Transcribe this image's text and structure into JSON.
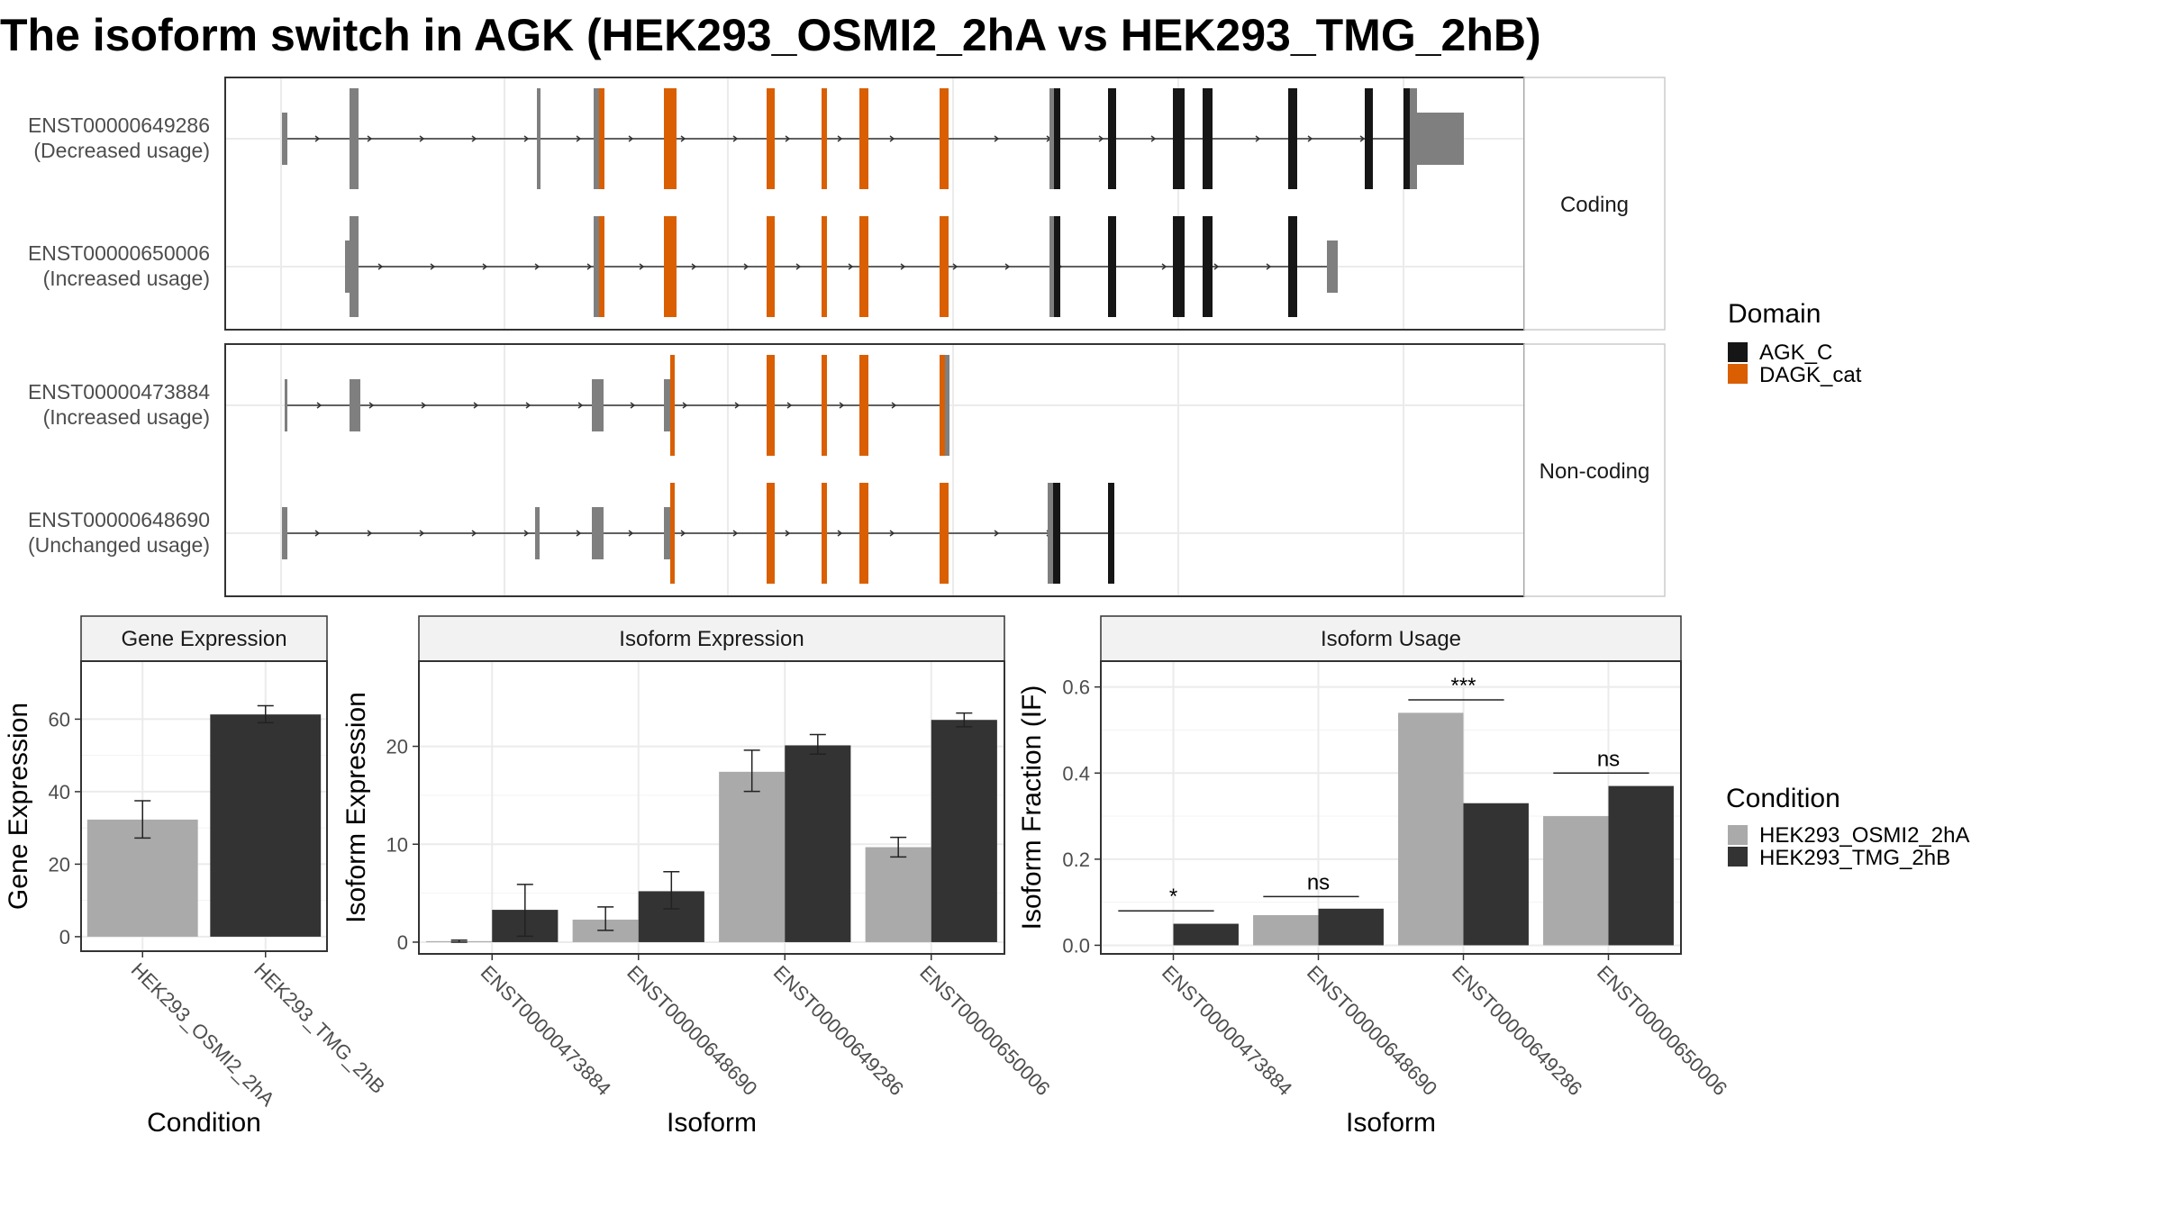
{
  "title": "The isoform switch in AGK (HEK293_OSMI2_2hA vs HEK293_TMG_2hB)",
  "colors": {
    "cond1": "#aaaaaa",
    "cond2": "#333333",
    "AGK_C": "#161616",
    "DAGK_cat": "#d95f02",
    "utr": "#7f7f7f",
    "strip": "#f2f2f2",
    "grid": "#ebebeb",
    "frame": "#333333"
  },
  "structure": {
    "facets": [
      "Coding",
      "Non-coding"
    ],
    "transcripts": [
      {
        "id": "ENST00000649286",
        "usage": "(Decreased usage)",
        "facet": "Coding"
      },
      {
        "id": "ENST00000650006",
        "usage": "(Increased usage)",
        "facet": "Coding"
      },
      {
        "id": "ENST00000473884",
        "usage": "(Increased usage)",
        "facet": "Non-coding"
      },
      {
        "id": "ENST00000648690",
        "usage": "(Unchanged usage)",
        "facet": "Non-coding"
      }
    ],
    "domain_legend": {
      "title": "Domain",
      "items": [
        "AGK_C",
        "DAGK_cat"
      ]
    }
  },
  "panels": {
    "gene": {
      "strip": "Gene Expression",
      "xlabel": "Condition",
      "ylabel": "Gene Expression"
    },
    "isoform_expression": {
      "strip": "Isoform Expression",
      "xlabel": "Isoform",
      "ylabel": "Isoform Expression"
    },
    "isoform_usage": {
      "strip": "Isoform Usage",
      "xlabel": "Isoform",
      "ylabel": "Isoform Fraction (IF)"
    }
  },
  "condition_legend": {
    "title": "Condition",
    "items": [
      "HEK293_OSMI2_2hA",
      "HEK293_TMG_2hB"
    ]
  },
  "chart_data": [
    {
      "type": "bar",
      "title": "Gene Expression",
      "xlabel": "Condition",
      "ylabel": "Gene Expression",
      "categories": [
        "HEK293_OSMI2_2hA",
        "HEK293_TMG_2hB"
      ],
      "values": [
        32.3,
        61.3
      ],
      "err_low": [
        27.2,
        59.0
      ],
      "err_high": [
        37.5,
        63.7
      ],
      "ylim": [
        -4,
        76
      ],
      "yticks": [
        0,
        20,
        40,
        60
      ]
    },
    {
      "type": "bar",
      "title": "Isoform Expression",
      "xlabel": "Isoform",
      "ylabel": "Isoform Expression",
      "categories": [
        "ENST00000473884",
        "ENST00000648690",
        "ENST00000649286",
        "ENST00000650006"
      ],
      "series": [
        {
          "name": "HEK293_OSMI2_2hA",
          "values": [
            0.1,
            2.3,
            17.4,
            9.7
          ],
          "err_low": [
            0.0,
            1.2,
            15.4,
            8.7
          ],
          "err_high": [
            0.2,
            3.6,
            19.6,
            10.7
          ]
        },
        {
          "name": "HEK293_TMG_2hB",
          "values": [
            3.3,
            5.2,
            20.1,
            22.7
          ],
          "err_low": [
            0.6,
            3.4,
            19.2,
            22.0
          ],
          "err_high": [
            5.9,
            7.2,
            21.2,
            23.4
          ]
        }
      ],
      "ylim": [
        -1.2,
        28.7
      ],
      "yticks": [
        0,
        10,
        20
      ]
    },
    {
      "type": "bar",
      "title": "Isoform Usage",
      "xlabel": "Isoform",
      "ylabel": "Isoform Fraction (IF)",
      "categories": [
        "ENST00000473884",
        "ENST00000648690",
        "ENST00000649286",
        "ENST00000650006"
      ],
      "series": [
        {
          "name": "HEK293_OSMI2_2hA",
          "values": [
            0.0,
            0.07,
            0.54,
            0.3
          ]
        },
        {
          "name": "HEK293_TMG_2hB",
          "values": [
            0.05,
            0.085,
            0.33,
            0.37
          ]
        }
      ],
      "significance": [
        "*",
        "ns",
        "***",
        "ns"
      ],
      "sig_level": [
        0.08,
        0.113,
        0.57,
        0.4
      ],
      "ylim": [
        -0.02,
        0.66
      ],
      "yticks": [
        0.0,
        0.2,
        0.4,
        0.6
      ],
      "ytick_labels": [
        "0.0",
        "0.2",
        "0.4",
        "0.6"
      ]
    }
  ]
}
